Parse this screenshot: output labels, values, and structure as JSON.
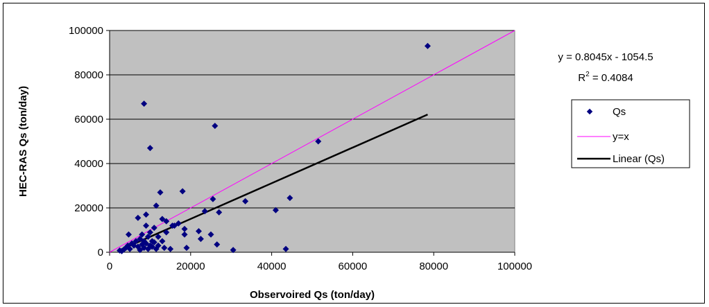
{
  "chart_data": {
    "type": "scatter",
    "xlabel": "Observoired Qs (ton/day)",
    "ylabel": "HEC-RAS Qs (ton/day)",
    "xlim": [
      0,
      100000
    ],
    "ylim": [
      0,
      100000
    ],
    "x_ticks": [
      "0",
      "20000",
      "40000",
      "60000",
      "80000",
      "100000"
    ],
    "y_ticks": [
      "0",
      "20000",
      "40000",
      "60000",
      "80000",
      "100000"
    ],
    "plot_background": "#c0c0c0",
    "grid": "horizontal",
    "legend_position": "right",
    "colors": {
      "points": "#000080",
      "identity": "#ff00ff",
      "trend": "#000000"
    },
    "series": [
      {
        "name": "Qs",
        "type": "scatter",
        "points": [
          [
            2500,
            800
          ],
          [
            3000,
            500
          ],
          [
            3500,
            1200
          ],
          [
            4000,
            2000
          ],
          [
            4500,
            3000
          ],
          [
            4700,
            8000
          ],
          [
            5000,
            1500
          ],
          [
            5500,
            4000
          ],
          [
            6000,
            3000
          ],
          [
            6500,
            5000
          ],
          [
            7000,
            2500
          ],
          [
            7000,
            15500
          ],
          [
            7500,
            1000
          ],
          [
            7500,
            6000
          ],
          [
            8000,
            3500
          ],
          [
            8000,
            8000
          ],
          [
            8500,
            67000
          ],
          [
            8500,
            5000
          ],
          [
            8500,
            2000
          ],
          [
            9000,
            17000
          ],
          [
            9000,
            4000
          ],
          [
            9000,
            12000
          ],
          [
            9500,
            1500
          ],
          [
            9500,
            7000
          ],
          [
            10000,
            47000
          ],
          [
            10000,
            3000
          ],
          [
            10000,
            9000
          ],
          [
            10500,
            5000
          ],
          [
            10500,
            2500
          ],
          [
            11000,
            4500
          ],
          [
            11000,
            11000
          ],
          [
            11500,
            1500
          ],
          [
            11500,
            21000
          ],
          [
            12000,
            3000
          ],
          [
            12000,
            7000
          ],
          [
            12500,
            27000
          ],
          [
            13000,
            5000
          ],
          [
            13000,
            15000
          ],
          [
            13500,
            2000
          ],
          [
            14000,
            9000
          ],
          [
            14000,
            14000
          ],
          [
            15000,
            1500
          ],
          [
            15500,
            12000
          ],
          [
            16000,
            12000
          ],
          [
            17000,
            13000
          ],
          [
            18000,
            27500
          ],
          [
            18500,
            10500
          ],
          [
            18500,
            8000
          ],
          [
            19000,
            2000
          ],
          [
            22000,
            9500
          ],
          [
            22500,
            6000
          ],
          [
            23500,
            18500
          ],
          [
            25000,
            8000
          ],
          [
            25500,
            24000
          ],
          [
            26000,
            57000
          ],
          [
            26500,
            3500
          ],
          [
            27000,
            18000
          ],
          [
            30500,
            1000
          ],
          [
            33500,
            23000
          ],
          [
            41000,
            19000
          ],
          [
            43500,
            1500
          ],
          [
            44500,
            24500
          ],
          [
            51500,
            50000
          ],
          [
            78500,
            93000
          ]
        ]
      },
      {
        "name": "y=x",
        "type": "line",
        "points": [
          [
            0,
            0
          ],
          [
            100000,
            100000
          ]
        ]
      },
      {
        "name": "Linear (Qs)",
        "type": "line",
        "points": [
          [
            2500,
            957
          ],
          [
            78500,
            62099
          ]
        ]
      }
    ],
    "trendline": {
      "equation": "y = 0.8045x - 1054.5",
      "r2_prefix": "R",
      "r2_sup": "2",
      "r2_value": " = 0.4084"
    }
  }
}
